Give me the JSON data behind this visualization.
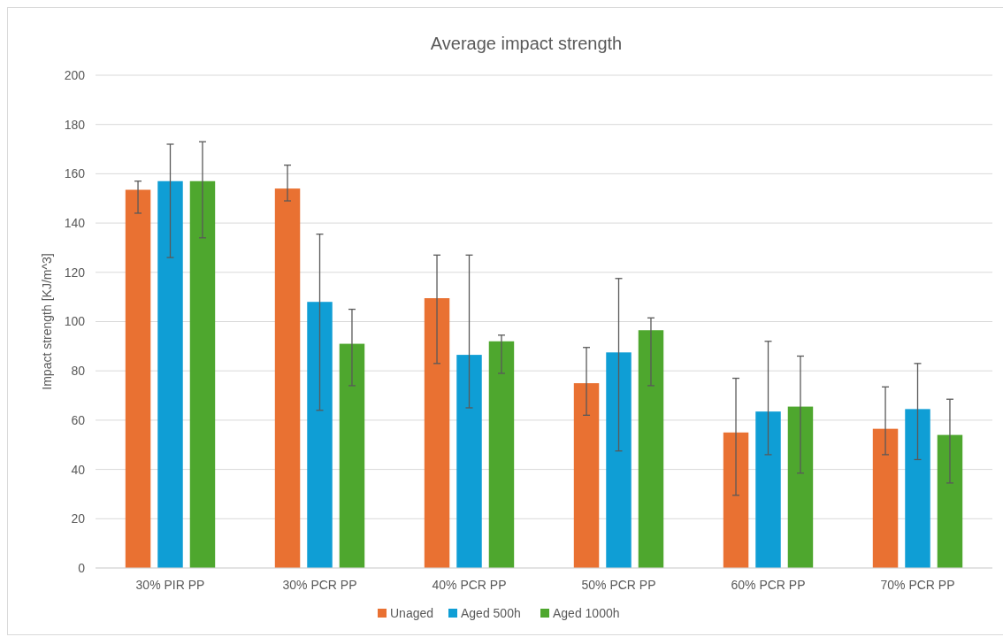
{
  "chart_data": {
    "type": "bar",
    "title": "Average impact strength",
    "ylabel": "Impact strength [KJ/m^3]",
    "categories": [
      "30% PIR PP",
      "30% PCR PP",
      "40% PCR PP",
      "50% PCR PP",
      "60% PCR PP",
      "70% PCR PP"
    ],
    "series": [
      {
        "name": "Unaged",
        "color": "#e97132",
        "values": [
          153.5,
          154,
          109.5,
          75,
          55,
          56.5
        ],
        "errors": [
          [
            144,
            157
          ],
          [
            149,
            163.5
          ],
          [
            83,
            127
          ],
          [
            62,
            89.5
          ],
          [
            29.5,
            77
          ],
          [
            46,
            73.5
          ]
        ]
      },
      {
        "name": "Aged 500h",
        "color": "#0f9ed5",
        "values": [
          157,
          108,
          86.5,
          87.5,
          63.5,
          64.5
        ],
        "errors": [
          [
            126,
            172
          ],
          [
            64,
            135.5
          ],
          [
            65,
            127
          ],
          [
            47.5,
            117.5
          ],
          [
            46,
            92
          ],
          [
            44,
            83
          ]
        ]
      },
      {
        "name": "Aged 1000h",
        "color": "#4ea72e",
        "values": [
          157,
          91,
          92,
          96.5,
          65.5,
          54
        ],
        "errors": [
          [
            134,
            173
          ],
          [
            74,
            105
          ],
          [
            79,
            94.5
          ],
          [
            74,
            101.5
          ],
          [
            38.5,
            86
          ],
          [
            34.5,
            68.5
          ]
        ]
      }
    ],
    "ylim": [
      0,
      200
    ],
    "yticks": [
      0,
      20,
      40,
      60,
      80,
      100,
      120,
      140,
      160,
      180,
      200
    ],
    "grid": "y",
    "legend": "bottom"
  }
}
